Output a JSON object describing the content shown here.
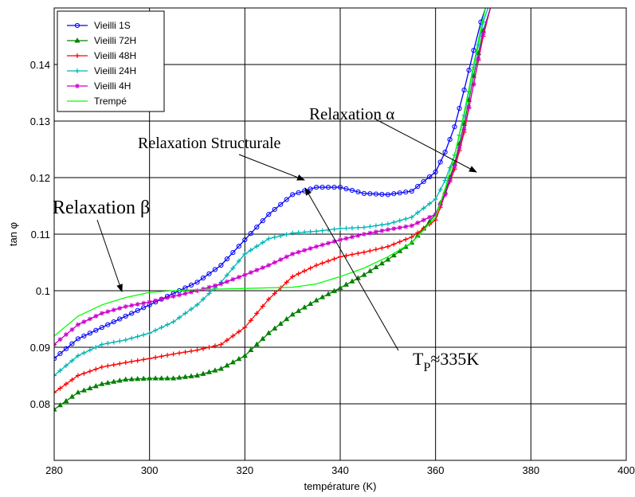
{
  "chart_data": {
    "type": "line",
    "xlabel": "température (K)",
    "ylabel": "tan φ",
    "xlim": [
      280,
      400
    ],
    "ylim": [
      0.07,
      0.15
    ],
    "xticks": [
      280,
      300,
      320,
      340,
      360,
      380,
      400
    ],
    "yticks": [
      0.08,
      0.09,
      0.1,
      0.11,
      0.12,
      0.13,
      0.14
    ],
    "ytick_labels": [
      "0.08",
      "0.09",
      "0.1",
      "0.11",
      "0.12",
      "0.13",
      "0.14"
    ],
    "grid": true,
    "legend": "top-left",
    "series": [
      {
        "name": "Vieilli 1S",
        "color": "#0000ff",
        "marker": "circle",
        "x": [
          280,
          285,
          290,
          295,
          300,
          305,
          310,
          315,
          320,
          325,
          330,
          335,
          340,
          345,
          350,
          355,
          360,
          362,
          364,
          366,
          368,
          369.5,
          370.5
        ],
        "y": [
          0.088,
          0.0915,
          0.0935,
          0.0955,
          0.0975,
          0.0995,
          0.1015,
          0.1045,
          0.109,
          0.1135,
          0.117,
          0.1183,
          0.1183,
          0.1172,
          0.117,
          0.1176,
          0.121,
          0.1245,
          0.129,
          0.1355,
          0.1425,
          0.1475,
          0.15
        ]
      },
      {
        "name": "Vieilli 72H",
        "color": "#008000",
        "marker": "triangle",
        "x": [
          280,
          285,
          290,
          295,
          300,
          305,
          310,
          315,
          320,
          325,
          330,
          335,
          340,
          345,
          350,
          355,
          360,
          362,
          364,
          366,
          368,
          370,
          371.5
        ],
        "y": [
          0.079,
          0.082,
          0.0835,
          0.0843,
          0.0845,
          0.0845,
          0.085,
          0.0862,
          0.0885,
          0.0925,
          0.0958,
          0.0983,
          0.1005,
          0.1028,
          0.1055,
          0.1085,
          0.1135,
          0.1175,
          0.1225,
          0.1295,
          0.138,
          0.146,
          0.15
        ]
      },
      {
        "name": "Vieilli 48H",
        "color": "#ff0000",
        "marker": "plus",
        "x": [
          280,
          285,
          290,
          295,
          300,
          305,
          310,
          315,
          320,
          325,
          330,
          335,
          340,
          345,
          350,
          355,
          360,
          362,
          364,
          366,
          368,
          370,
          371.5
        ],
        "y": [
          0.082,
          0.085,
          0.0865,
          0.0873,
          0.088,
          0.0888,
          0.0895,
          0.0905,
          0.0935,
          0.0985,
          0.1025,
          0.1045,
          0.106,
          0.1068,
          0.1078,
          0.1095,
          0.1125,
          0.117,
          0.1215,
          0.128,
          0.1365,
          0.145,
          0.15
        ]
      },
      {
        "name": "Vieilli 24H",
        "color": "#00b5b5",
        "marker": "plus",
        "x": [
          280,
          285,
          290,
          295,
          300,
          305,
          310,
          315,
          320,
          325,
          330,
          335,
          340,
          345,
          350,
          355,
          360,
          362,
          364,
          366,
          368,
          370,
          371
        ],
        "y": [
          0.085,
          0.0885,
          0.0905,
          0.0913,
          0.0925,
          0.0945,
          0.0975,
          0.1015,
          0.1065,
          0.1092,
          0.1102,
          0.1105,
          0.111,
          0.1112,
          0.1118,
          0.113,
          0.1162,
          0.1195,
          0.124,
          0.131,
          0.1395,
          0.1475,
          0.15
        ]
      },
      {
        "name": "Vieilli 4H",
        "color": "#cc00cc",
        "marker": "star",
        "x": [
          280,
          285,
          290,
          295,
          300,
          305,
          310,
          315,
          320,
          325,
          330,
          335,
          340,
          345,
          350,
          355,
          360,
          362,
          364,
          366,
          368,
          370,
          371.5
        ],
        "y": [
          0.0905,
          0.094,
          0.096,
          0.0972,
          0.098,
          0.099,
          0.1,
          0.1012,
          0.1028,
          0.1045,
          0.1065,
          0.1078,
          0.109,
          0.11,
          0.1108,
          0.1115,
          0.1135,
          0.117,
          0.122,
          0.1285,
          0.1365,
          0.1455,
          0.15
        ]
      },
      {
        "name": "Trempé",
        "color": "#00ff00",
        "marker": "none",
        "x": [
          280,
          285,
          290,
          295,
          300,
          305,
          310,
          315,
          320,
          325,
          330,
          335,
          340,
          345,
          350,
          355,
          360,
          362,
          364,
          366,
          368,
          369.5,
          370.5
        ],
        "y": [
          0.092,
          0.0955,
          0.0975,
          0.0988,
          0.0997,
          0.1,
          0.1002,
          0.1003,
          0.1004,
          0.1005,
          0.1006,
          0.1012,
          0.1025,
          0.104,
          0.106,
          0.1085,
          0.113,
          0.118,
          0.124,
          0.1315,
          0.14,
          0.1465,
          0.15
        ]
      }
    ],
    "annotations": [
      {
        "text": "Relaxation α"
      },
      {
        "text": "Relaxation Structurale"
      },
      {
        "text": "Relaxation β"
      },
      {
        "text": "T",
        "subscript": "P",
        "suffix": "≈335K"
      }
    ]
  }
}
